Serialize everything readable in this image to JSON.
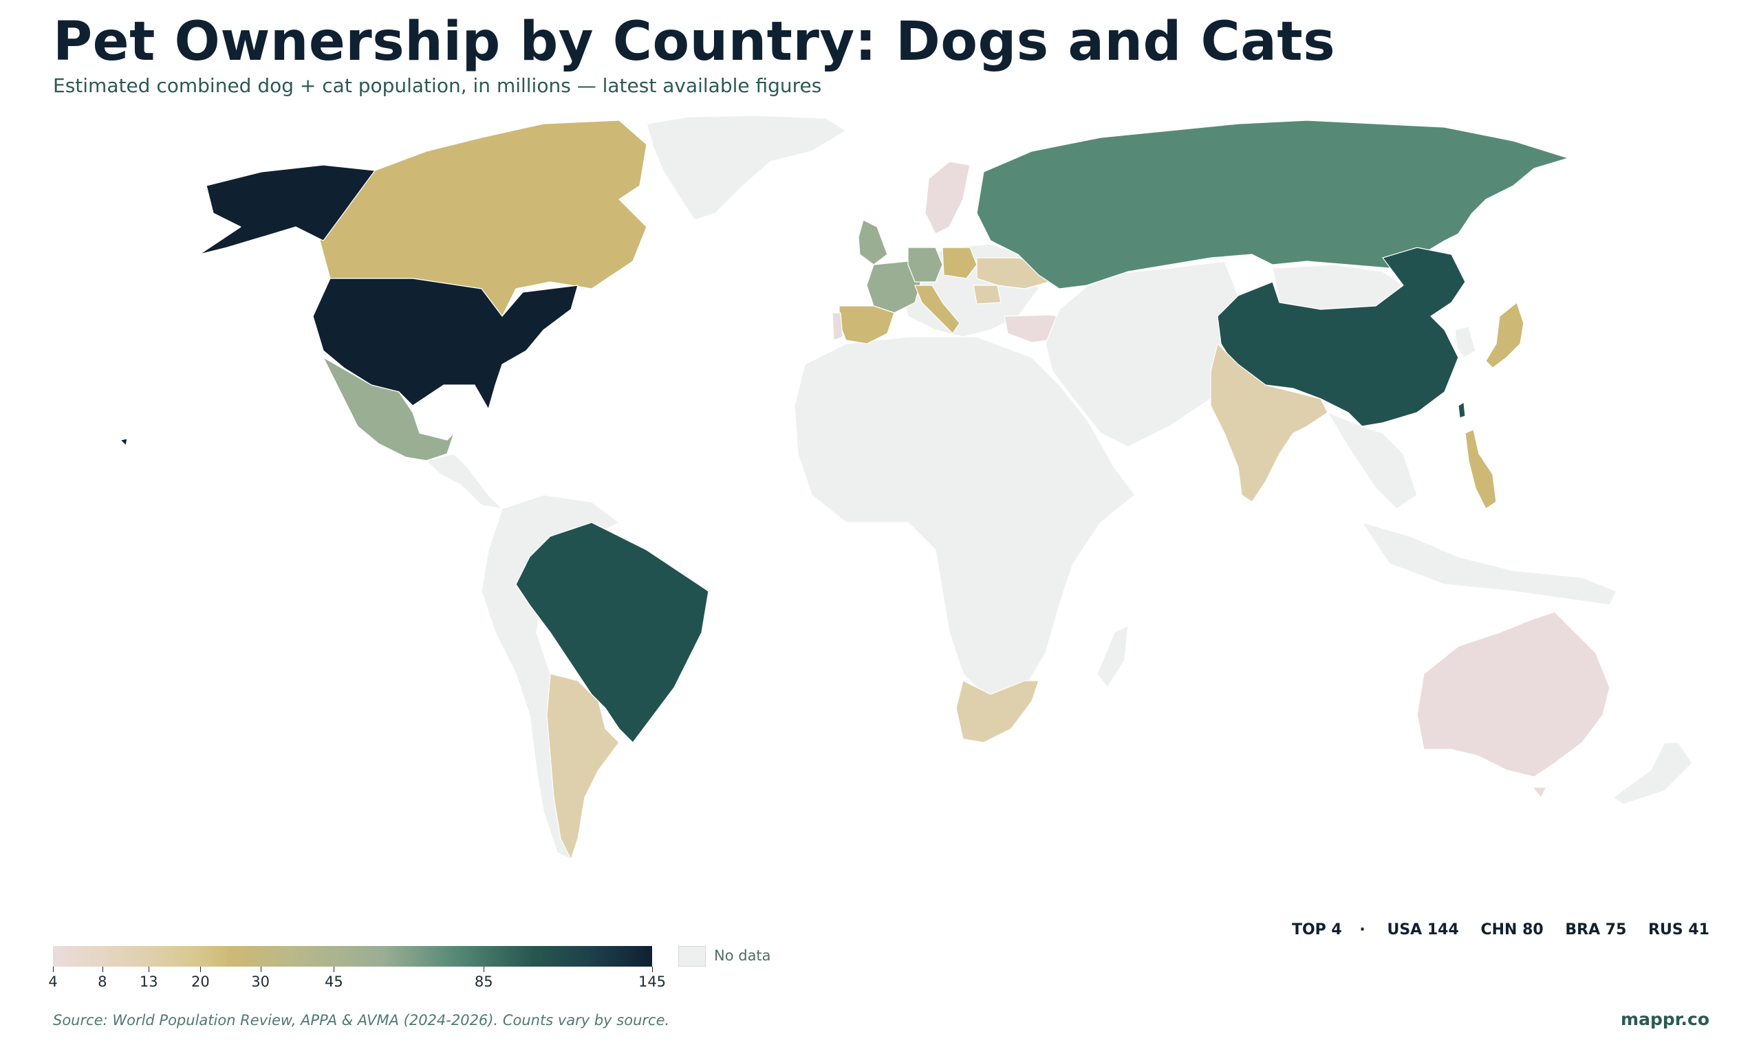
{
  "title": "Pet Ownership by Country: Dogs and Cats",
  "subtitle": "Estimated combined dog + cat population, in millions — latest available figures",
  "top4": {
    "label": "TOP 4",
    "separator": "·",
    "items": [
      "USA 144",
      "CHN 80",
      "BRA 75",
      "RUS 41"
    ]
  },
  "legend": {
    "ticks": [
      "4",
      "8",
      "13",
      "20",
      "30",
      "45",
      "85",
      "145"
    ],
    "tick_values": [
      4,
      8,
      13,
      20,
      30,
      45,
      85,
      145
    ],
    "min": 4,
    "max": 145,
    "no_data_label": "No data",
    "no_data_color": "#eef0ef"
  },
  "source": "Source: World Population Review, APPA & AVMA (2024-2026). Counts vary by source.",
  "brand": "mappr.co",
  "colors": {
    "title": "#0f2031",
    "accent": "#2c5a52",
    "very_high": "#0f2031",
    "high": "#22524f",
    "mid_high": "#568a77",
    "mid": "#9aae94",
    "mid_low": "#cdb975",
    "low": "#dfd0ad",
    "very_low": "#eadcdc",
    "no_data": "#eef0ef"
  },
  "countries": [
    {
      "code": "USA",
      "color": "very_high"
    },
    {
      "code": "CHN",
      "color": "high"
    },
    {
      "code": "BRA",
      "color": "high"
    },
    {
      "code": "RUS",
      "color": "mid_high"
    },
    {
      "code": "MEX",
      "color": "mid"
    },
    {
      "code": "FRA",
      "color": "mid"
    },
    {
      "code": "DEU",
      "color": "mid"
    },
    {
      "code": "GBR",
      "color": "mid"
    },
    {
      "code": "CAN",
      "color": "mid_low"
    },
    {
      "code": "JPN",
      "color": "mid_low"
    },
    {
      "code": "ESP",
      "color": "mid_low"
    },
    {
      "code": "ITA",
      "color": "mid_low"
    },
    {
      "code": "POL",
      "color": "mid_low"
    },
    {
      "code": "PHL",
      "color": "mid_low"
    },
    {
      "code": "IND",
      "color": "low"
    },
    {
      "code": "ARG",
      "color": "low"
    },
    {
      "code": "ZAF",
      "color": "low"
    },
    {
      "code": "UKR",
      "color": "low"
    },
    {
      "code": "ROU",
      "color": "low"
    },
    {
      "code": "AUS",
      "color": "very_low"
    },
    {
      "code": "TUR",
      "color": "very_low"
    },
    {
      "code": "SWE",
      "color": "very_low"
    },
    {
      "code": "PRT",
      "color": "very_low"
    }
  ]
}
